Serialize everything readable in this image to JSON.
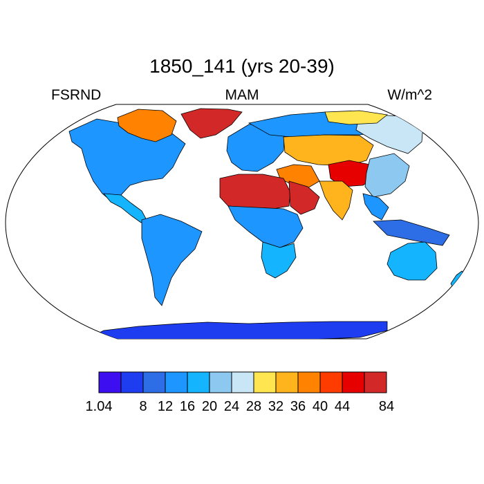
{
  "title": "1850_141 (yrs 20-39)",
  "variable": "FSRND",
  "season": "MAM",
  "units": "W/m^2",
  "projection": "Robinson",
  "colorbar": {
    "colors": [
      "#3d0ff0",
      "#1e3cf0",
      "#2d6ee6",
      "#1e96ff",
      "#14b4ff",
      "#8cc8f0",
      "#c8e6f5",
      "#ffe650",
      "#ffb41e",
      "#ff8200",
      "#ff3c00",
      "#e60000",
      "#d22828"
    ],
    "labels": [
      {
        "text": "1.04",
        "boundary": 0
      },
      {
        "text": "8",
        "boundary": 2
      },
      {
        "text": "12",
        "boundary": 3
      },
      {
        "text": "16",
        "boundary": 4
      },
      {
        "text": "20",
        "boundary": 5
      },
      {
        "text": "24",
        "boundary": 6
      },
      {
        "text": "28",
        "boundary": 7
      },
      {
        "text": "32",
        "boundary": 8
      },
      {
        "text": "36",
        "boundary": 9
      },
      {
        "text": "40",
        "boundary": 10
      },
      {
        "text": "44",
        "boundary": 11
      },
      {
        "text": "84",
        "boundary": 13
      }
    ]
  },
  "regions": [
    {
      "name": "canada-and-usa",
      "level": 3
    },
    {
      "name": "canadian-arctic",
      "level": 9
    },
    {
      "name": "greenland",
      "level": 12
    },
    {
      "name": "mexico-central-america",
      "level": 4
    },
    {
      "name": "south-america",
      "level": 3
    },
    {
      "name": "europe",
      "level": 3
    },
    {
      "name": "northern-russia",
      "level": 3
    },
    {
      "name": "siberia",
      "level": 6
    },
    {
      "name": "central-asia",
      "level": 8
    },
    {
      "name": "arctic-coast-asia",
      "level": 7
    },
    {
      "name": "sahara",
      "level": 12
    },
    {
      "name": "arabia",
      "level": 12
    },
    {
      "name": "middle-east",
      "level": 9
    },
    {
      "name": "central-africa",
      "level": 3
    },
    {
      "name": "southern-africa",
      "level": 4
    },
    {
      "name": "india",
      "level": 8
    },
    {
      "name": "tibet-plateau",
      "level": 11
    },
    {
      "name": "china",
      "level": 5
    },
    {
      "name": "southeast-asia",
      "level": 3
    },
    {
      "name": "indonesia",
      "level": 2
    },
    {
      "name": "australia",
      "level": 4
    },
    {
      "name": "antarctica",
      "level": 1
    }
  ]
}
